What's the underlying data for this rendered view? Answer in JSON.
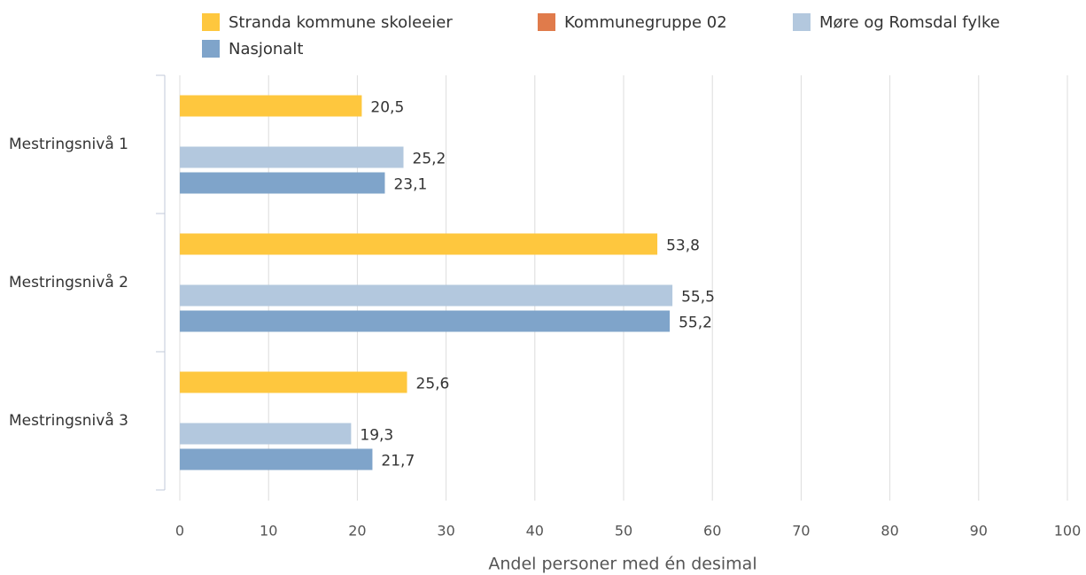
{
  "chart_data": {
    "type": "bar",
    "orientation": "horizontal",
    "x_axis_label": "Andel personer med én desimal",
    "categories": [
      "Mestringsnivå 1",
      "Mestringsnivå 2",
      "Mestringsnivå 3"
    ],
    "series": [
      {
        "name": "Stranda kommune skoleeier",
        "color": "#fec73e",
        "values": [
          20.5,
          53.8,
          25.6
        ],
        "value_labels": [
          "20,5",
          "53,8",
          "25,6"
        ]
      },
      {
        "name": "Kommunegruppe 02",
        "color": "#e07b4b",
        "values": [
          null,
          null,
          null
        ]
      },
      {
        "name": "Møre og Romsdal fylke",
        "color": "#b3c8de",
        "values": [
          25.2,
          55.5,
          19.3
        ],
        "value_labels": [
          "25,2",
          "55,5",
          "19,3"
        ]
      },
      {
        "name": "Nasjonalt",
        "color": "#7fa4ca",
        "values": [
          23.1,
          55.2,
          21.7
        ],
        "value_labels": [
          "23,1",
          "55,2",
          "21,7"
        ]
      }
    ],
    "xlim": [
      0,
      100
    ],
    "xticks": [
      0,
      10,
      20,
      30,
      40,
      50,
      60,
      70,
      80,
      90,
      100
    ],
    "grid": true
  }
}
